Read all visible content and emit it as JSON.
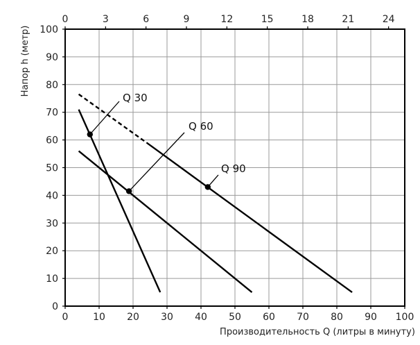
{
  "chart_data": {
    "type": "line",
    "xlabel": "Производительность Q (литры в минуту)",
    "ylabel": "Напор h (метр)",
    "xlim": [
      0,
      100
    ],
    "ylim": [
      0,
      100
    ],
    "x_ticks": [
      "0",
      "10",
      "20",
      "30",
      "40",
      "50",
      "60",
      "70",
      "80",
      "90",
      "100"
    ],
    "y_ticks": [
      "0",
      "10",
      "20",
      "30",
      "40",
      "50",
      "60",
      "70",
      "80",
      "90",
      "100"
    ],
    "top_axis": {
      "xlim": [
        0,
        25.2
      ],
      "ticks": [
        "0",
        "3",
        "6",
        "9",
        "12",
        "15",
        "18",
        "21",
        "24"
      ]
    },
    "grid": true,
    "series": [
      {
        "name": "Q 30",
        "x": [
          4,
          28
        ],
        "y": [
          71,
          5
        ],
        "marker_x": 7.3,
        "marker_y": 62
      },
      {
        "name": "Q 60",
        "x": [
          4,
          55
        ],
        "y": [
          56,
          5
        ],
        "marker_x": 18.8,
        "marker_y": 41.5
      },
      {
        "name": "Q 90",
        "x": [
          24,
          84.5
        ],
        "y": [
          59,
          5
        ],
        "marker_x": 42,
        "marker_y": 43,
        "dashed_extension": {
          "x": [
            4,
            24
          ],
          "y": [
            76.5,
            59
          ]
        }
      }
    ]
  }
}
